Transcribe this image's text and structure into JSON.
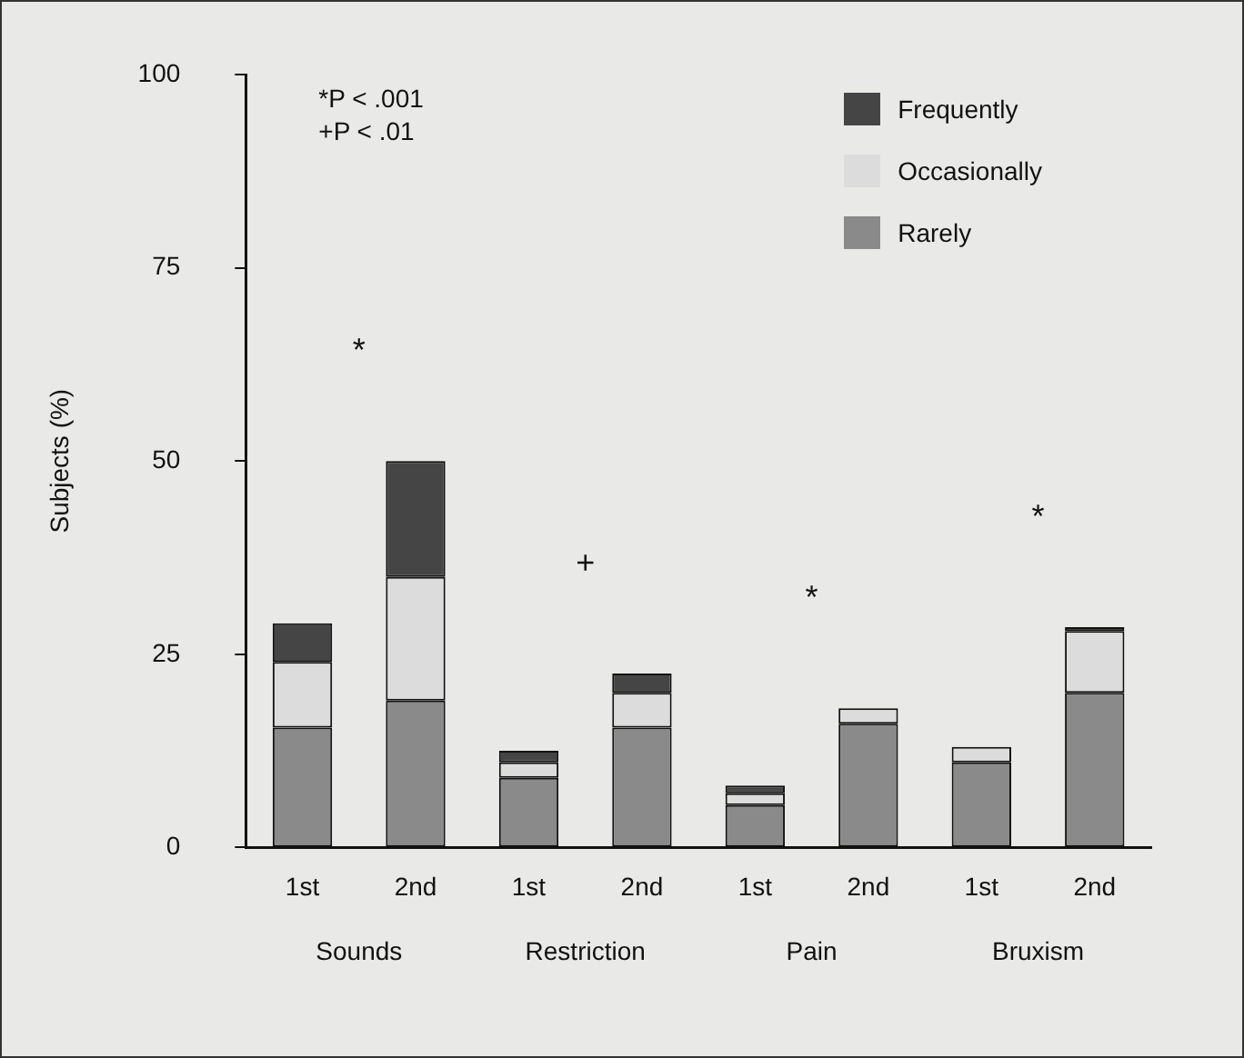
{
  "chart_data": {
    "type": "bar",
    "stacked": true,
    "ylabel": "Subjects (%)",
    "categories": [
      "1st",
      "2nd",
      "1st",
      "2nd",
      "1st",
      "2nd",
      "1st",
      "2nd"
    ],
    "series": [
      {
        "name": "Rarely",
        "color": "#8a8a8a",
        "values": [
          15.5,
          19,
          9,
          15.5,
          5.5,
          16,
          11,
          20
        ]
      },
      {
        "name": "Occasionally",
        "color": "#dcdcdc",
        "values": [
          8.5,
          16,
          2,
          4.5,
          1.5,
          2,
          2,
          8
        ]
      },
      {
        "name": "Frequently",
        "color": "#454545",
        "values": [
          5,
          15,
          1.5,
          2.5,
          1,
          0,
          0,
          0.5
        ]
      }
    ],
    "ylim": [
      0,
      100
    ],
    "yticks": [
      0,
      25,
      50,
      75,
      100
    ],
    "grid": false,
    "legend": "top right",
    "annotations": [
      "*P < .001",
      "+P < .01",
      "*",
      "+",
      "*",
      "*",
      "Sounds",
      "Restriction",
      "Pain",
      "Bruxism"
    ]
  }
}
